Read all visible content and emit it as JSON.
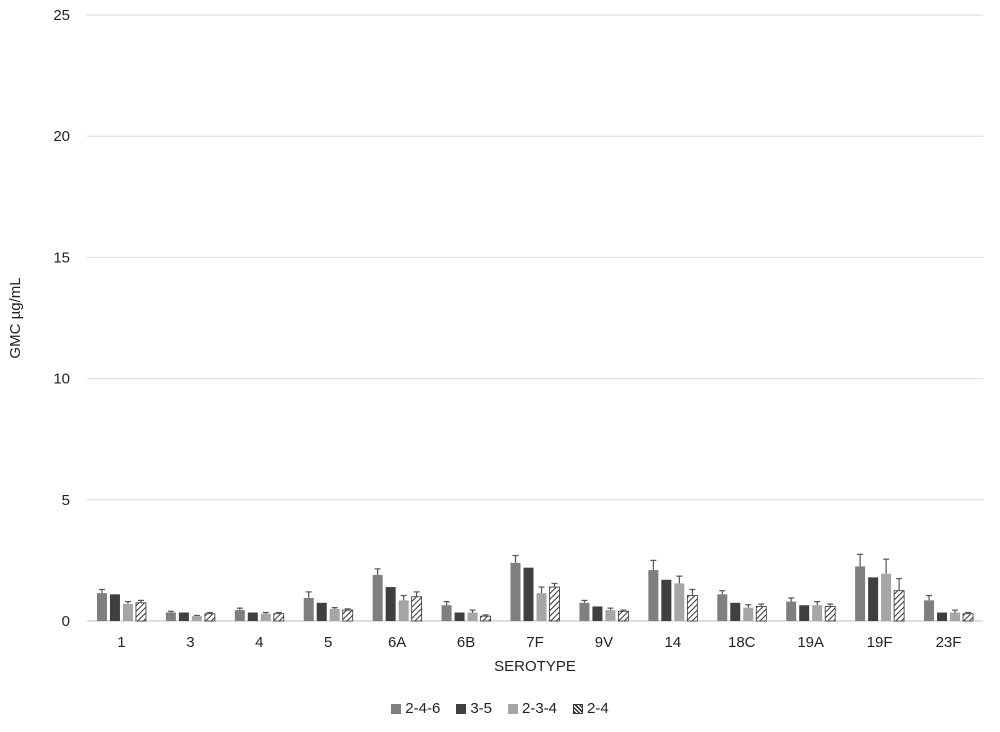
{
  "chart_data": {
    "type": "bar",
    "title": "",
    "xlabel": "SEROTYPE",
    "ylabel": "GMC µg/mL",
    "ylim": [
      0,
      25
    ],
    "yticks": [
      "0",
      "5",
      "10",
      "15",
      "20",
      "25"
    ],
    "grid": true,
    "legend_position": "bottom",
    "error_bars": true,
    "categories": [
      "1",
      "3",
      "4",
      "5",
      "6A",
      "6B",
      "7F",
      "9V",
      "14",
      "18C",
      "19A",
      "19F",
      "23F"
    ],
    "series": [
      {
        "name": "2-4-6",
        "color": "#7f7f7f",
        "pattern": "solid",
        "values": [
          1.15,
          0.35,
          0.45,
          0.95,
          1.9,
          0.65,
          2.4,
          0.75,
          2.1,
          1.1,
          0.8,
          2.25,
          0.85
        ],
        "errors": [
          0.15,
          0.05,
          0.08,
          0.25,
          0.25,
          0.15,
          0.3,
          0.1,
          0.4,
          0.15,
          0.15,
          0.5,
          0.2
        ]
      },
      {
        "name": "3-5",
        "color": "#3f3f3f",
        "pattern": "solid",
        "values": [
          1.1,
          0.35,
          0.35,
          0.75,
          1.4,
          0.35,
          2.2,
          0.6,
          1.7,
          0.75,
          0.65,
          1.8,
          0.35
        ]
      },
      {
        "name": "2-3-4",
        "color": "#a6a6a6",
        "pattern": "solid",
        "values": [
          0.7,
          0.2,
          0.3,
          0.5,
          0.85,
          0.35,
          1.15,
          0.45,
          1.55,
          0.55,
          0.65,
          1.95,
          0.35
        ],
        "errors": [
          0.1,
          0.03,
          0.05,
          0.05,
          0.2,
          0.1,
          0.25,
          0.08,
          0.3,
          0.12,
          0.15,
          0.6,
          0.1
        ]
      },
      {
        "name": "2-4",
        "color": "#ffffff",
        "pattern": "hatch",
        "values": [
          0.75,
          0.3,
          0.3,
          0.45,
          1.0,
          0.2,
          1.4,
          0.4,
          1.05,
          0.6,
          0.6,
          1.25,
          0.3
        ],
        "errors": [
          0.1,
          0.05,
          0.05,
          0.05,
          0.2,
          0.05,
          0.15,
          0.05,
          0.25,
          0.1,
          0.1,
          0.5,
          0.05
        ]
      }
    ]
  }
}
